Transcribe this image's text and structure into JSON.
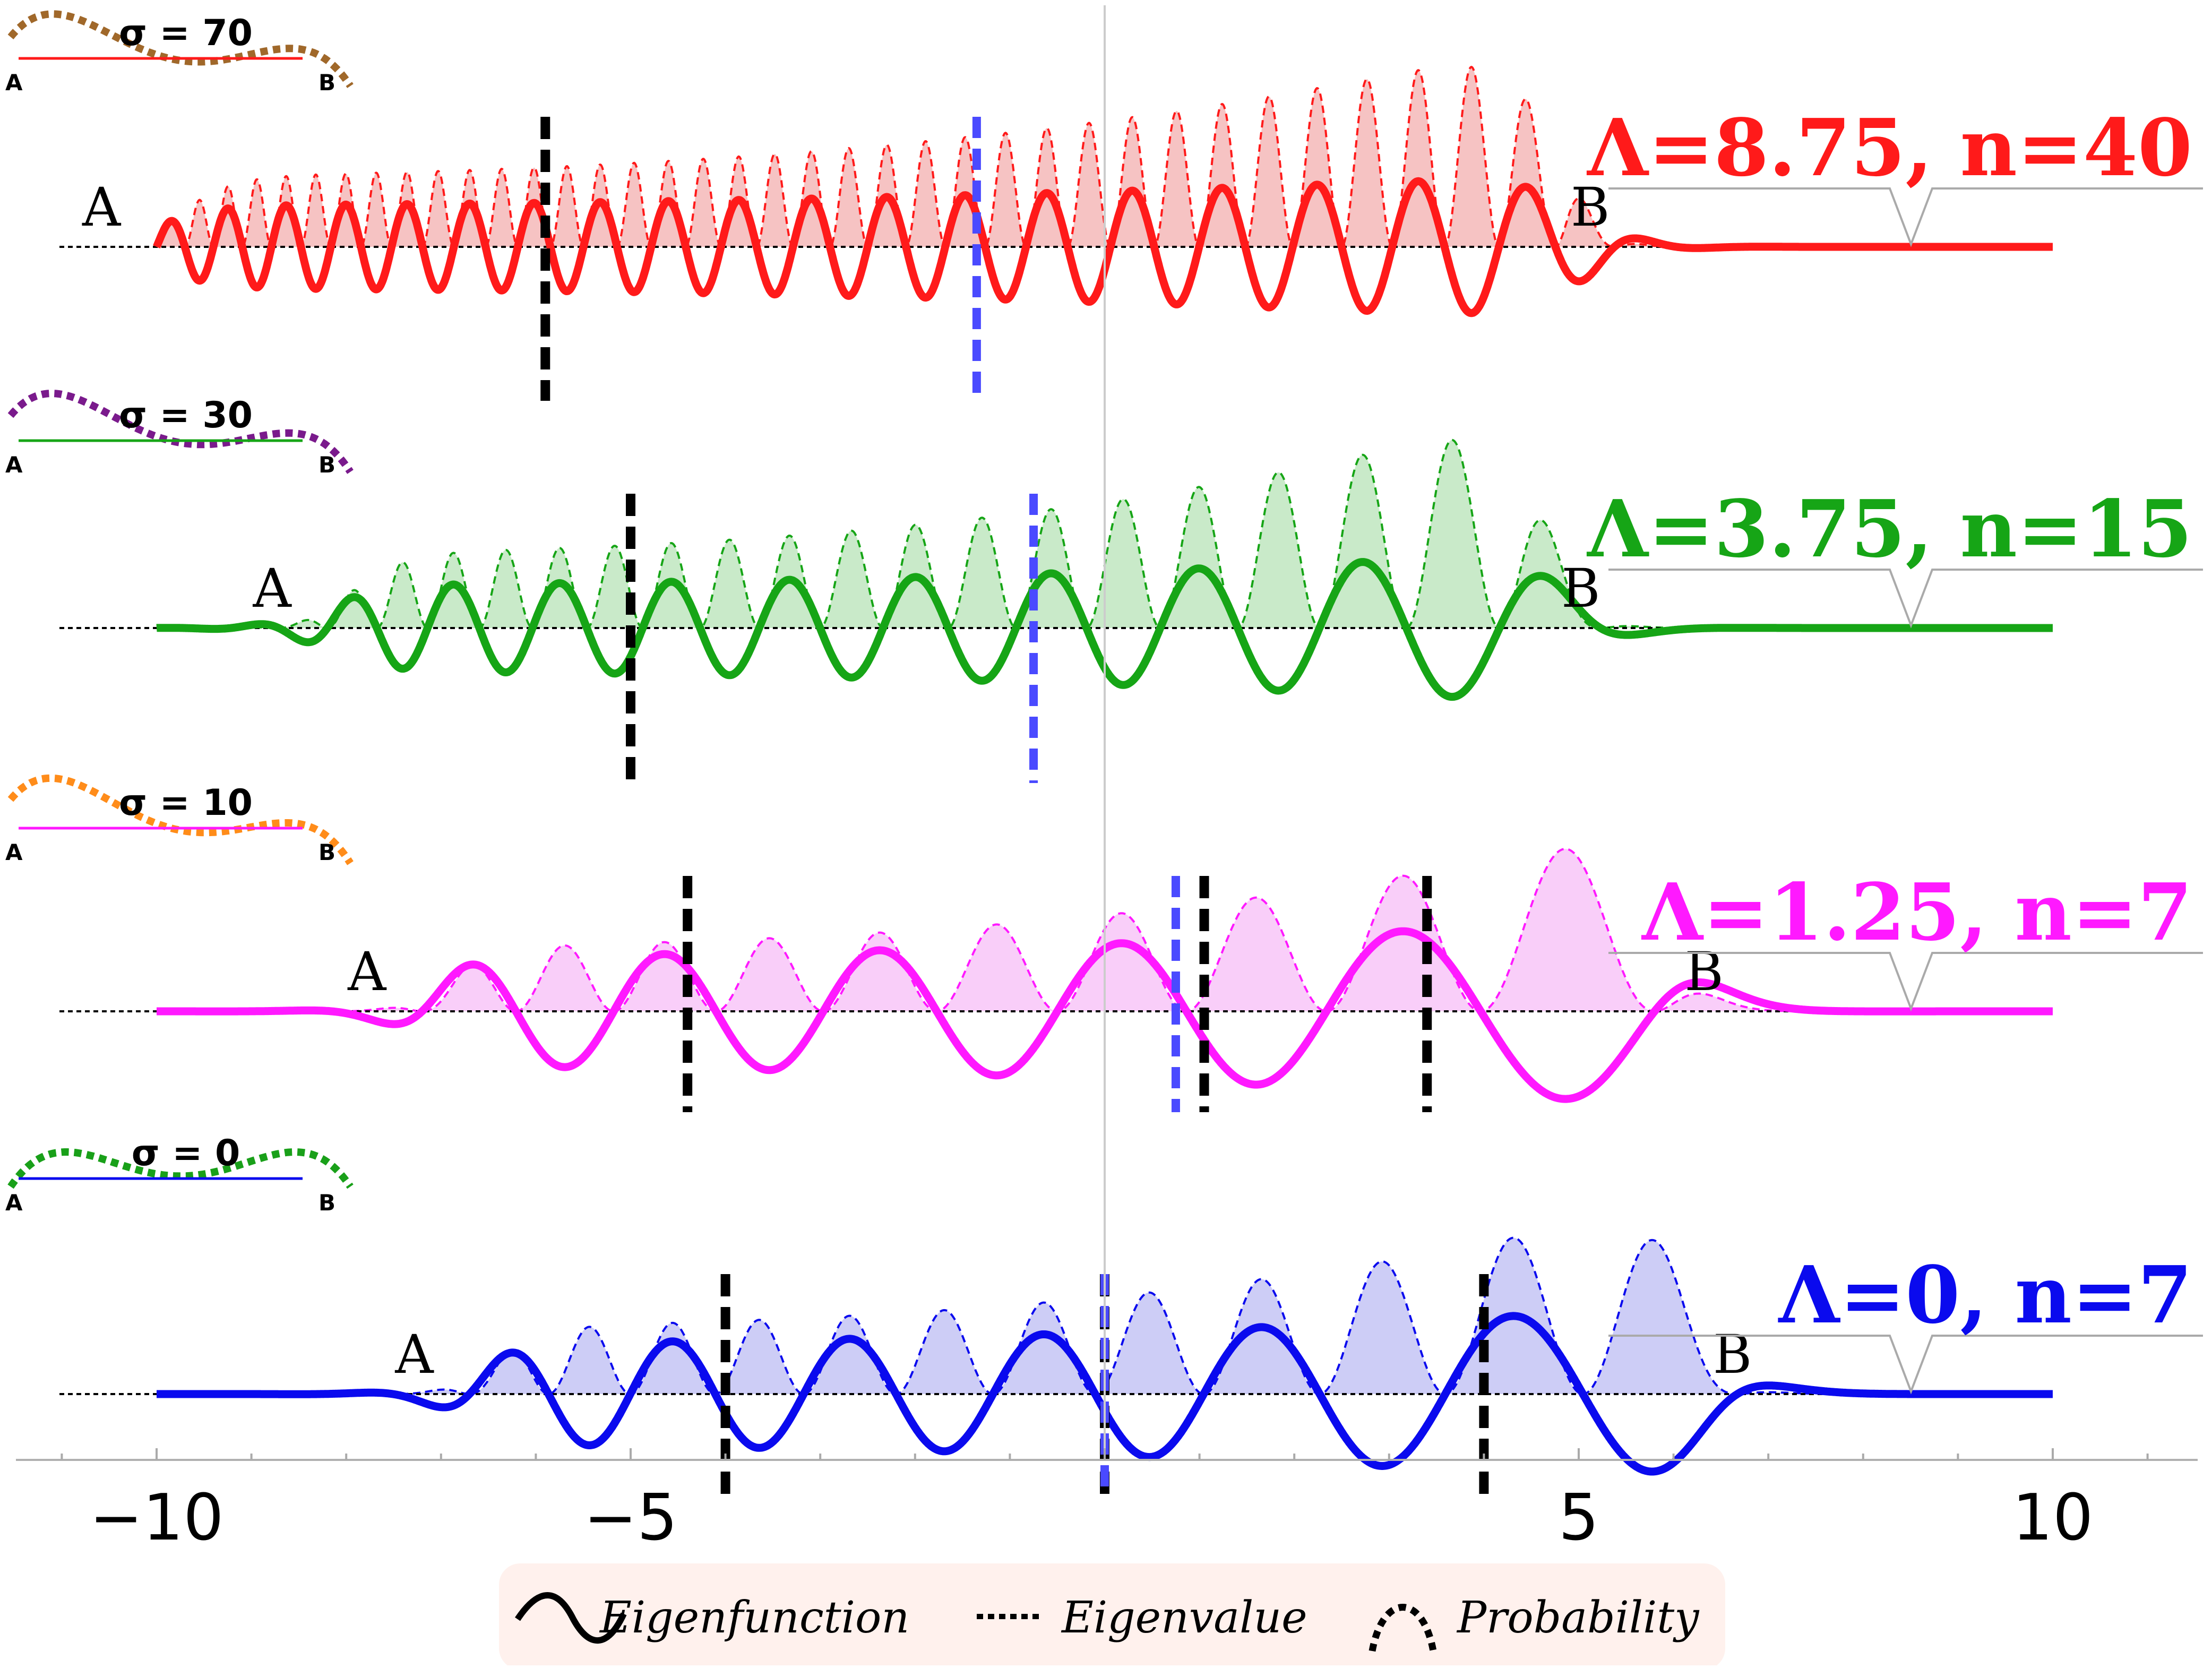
{
  "chart_data": {
    "type": "line",
    "title": "",
    "xlabel": "",
    "ylabel": "",
    "xlim": [
      -11.5,
      11.5
    ],
    "x_ticks": [
      "−10",
      "−5",
      "5",
      "10"
    ],
    "x_tick_values": [
      -10,
      -5,
      5,
      10
    ],
    "grid": false,
    "legend_position": "bottom-center",
    "legend": [
      {
        "label": "Eigenfunction",
        "style": "solid"
      },
      {
        "label": "Eigenvalue",
        "style": "dotted"
      },
      {
        "label": "Probability",
        "style": "dashed-curve"
      }
    ],
    "endpoint_labels": {
      "left": "A",
      "right": "B"
    },
    "panels": [
      {
        "name": "Λ=8.75, n=40",
        "label": "Λ=8.75, n=40",
        "sigma_label": "σ = 70",
        "color": "#ff1a1a",
        "fill": "#f4b8b8",
        "inset_color": "#a0682a",
        "A_x": -10,
        "B_x": 5,
        "wave_cycles": 22,
        "black_markers": [
          -5.9
        ],
        "blue_markers": [
          -1.35
        ]
      },
      {
        "name": "Λ=3.75, n=15",
        "label": "Λ=3.75, n=15",
        "sigma_label": "σ = 30",
        "color": "#16a516",
        "fill": "#bfe6bf",
        "inset_color": "#7a1a8c",
        "A_x": -8.2,
        "B_x": 4.9,
        "wave_cycles": 11,
        "black_markers": [
          -5
        ],
        "blue_markers": [
          -0.75
        ]
      },
      {
        "name": "Λ=1.25, n=7",
        "label": "Λ=1.25, n=7",
        "sigma_label": "σ = 10",
        "color": "#ff19ff",
        "fill": "#f8c6f8",
        "inset_color": "#ff8c1a",
        "A_x": -7.2,
        "B_x": 6.2,
        "wave_cycles": 6,
        "black_markers": [
          -4.4,
          1.05,
          3.4
        ],
        "blue_markers": [
          0.75
        ]
      },
      {
        "name": "Λ=0, n=7",
        "label": "Λ=0, n=7",
        "sigma_label": "σ = 0",
        "color": "#0a0aee",
        "fill": "#c4c4f4",
        "inset_color": "#19a019",
        "A_x": -6.7,
        "B_x": 6.5,
        "wave_cycles": 7,
        "black_markers": [
          -4,
          0,
          4
        ],
        "blue_markers": [
          0
        ]
      }
    ]
  }
}
